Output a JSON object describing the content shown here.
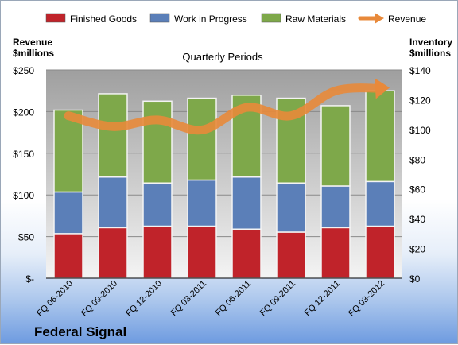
{
  "company": "Federal Signal",
  "chart_data": {
    "type": "bar",
    "stacked": true,
    "title": "Quarterly Periods",
    "ylabel_left": [
      "Revenue",
      "$millions"
    ],
    "ylabel_right": [
      "Inventory",
      "$millions"
    ],
    "categories": [
      "FQ 06-2010",
      "FQ 09-2010",
      "FQ 12-2010",
      "FQ 03-2011",
      "FQ 06-2011",
      "FQ 09-2011",
      "FQ 12-2011",
      "FQ 03-2012"
    ],
    "left_axis": {
      "range": [
        0,
        250
      ],
      "ticks": [
        0,
        50,
        100,
        150,
        200,
        250
      ],
      "tick_labels": [
        "$-",
        "$50",
        "$100",
        "$150",
        "$200",
        "$250"
      ]
    },
    "right_axis": {
      "range": [
        0,
        140
      ],
      "ticks": [
        0,
        20,
        40,
        60,
        80,
        100,
        120,
        140
      ],
      "tick_labels": [
        "$0",
        "$20",
        "$40",
        "$60",
        "$80",
        "$100",
        "$120",
        "$140"
      ]
    },
    "series": [
      {
        "name": "Finished Goods",
        "axis": "right",
        "color": "#c0232a",
        "values": [
          30,
          34,
          35,
          35,
          33,
          31,
          34,
          35
        ]
      },
      {
        "name": "Work in Progress",
        "axis": "right",
        "color": "#5b7fb8",
        "values": [
          28,
          34,
          29,
          31,
          35,
          33,
          28,
          30
        ]
      },
      {
        "name": "Raw Materials",
        "axis": "right",
        "color": "#7ea84a",
        "values": [
          55,
          56,
          55,
          55,
          55,
          57,
          54,
          61
        ]
      },
      {
        "name": "Revenue",
        "axis": "left",
        "type": "line",
        "color": "#e8893a",
        "values": [
          195,
          182,
          190,
          178,
          205,
          195,
          225,
          228
        ]
      }
    ],
    "grid": true,
    "legend": "top"
  }
}
